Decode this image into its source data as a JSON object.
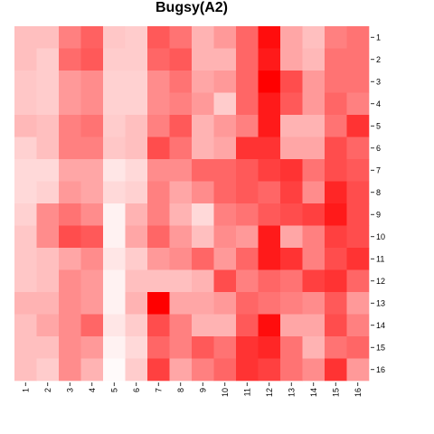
{
  "chart_data": {
    "type": "heatmap",
    "title": "Bugsy(A2)",
    "xlabel": "",
    "ylabel": "",
    "x_labels": [
      "1",
      "2",
      "3",
      "4",
      "5",
      "6",
      "7",
      "8",
      "9",
      "10",
      "11",
      "12",
      "13",
      "14",
      "15",
      "16"
    ],
    "y_labels": [
      "1",
      "2",
      "3",
      "4",
      "5",
      "6",
      "7",
      "8",
      "9",
      "10",
      "11",
      "12",
      "13",
      "14",
      "15",
      "16"
    ],
    "color_low": "#ffffff",
    "color_high": "#ff0000",
    "value_range": [
      0,
      1
    ],
    "legend": "none",
    "grid": false,
    "values": [
      [
        0.25,
        0.25,
        0.5,
        0.62,
        0.22,
        0.2,
        0.65,
        0.55,
        0.3,
        0.4,
        0.6,
        0.95,
        0.35,
        0.25,
        0.5,
        0.55
      ],
      [
        0.25,
        0.2,
        0.58,
        0.65,
        0.2,
        0.2,
        0.6,
        0.65,
        0.3,
        0.3,
        0.6,
        0.9,
        0.35,
        0.28,
        0.55,
        0.55
      ],
      [
        0.22,
        0.2,
        0.4,
        0.45,
        0.18,
        0.18,
        0.45,
        0.55,
        0.35,
        0.4,
        0.6,
        1.0,
        0.7,
        0.4,
        0.55,
        0.55
      ],
      [
        0.22,
        0.2,
        0.4,
        0.45,
        0.18,
        0.18,
        0.45,
        0.5,
        0.4,
        0.2,
        0.6,
        0.9,
        0.65,
        0.4,
        0.6,
        0.5
      ],
      [
        0.28,
        0.25,
        0.5,
        0.55,
        0.2,
        0.25,
        0.5,
        0.65,
        0.3,
        0.4,
        0.5,
        0.9,
        0.3,
        0.3,
        0.55,
        0.8
      ],
      [
        0.18,
        0.25,
        0.5,
        0.5,
        0.22,
        0.25,
        0.7,
        0.55,
        0.3,
        0.35,
        0.8,
        0.8,
        0.35,
        0.35,
        0.7,
        0.6
      ],
      [
        0.15,
        0.15,
        0.35,
        0.35,
        0.1,
        0.15,
        0.45,
        0.45,
        0.6,
        0.6,
        0.65,
        0.75,
        0.8,
        0.55,
        0.7,
        0.65
      ],
      [
        0.15,
        0.18,
        0.4,
        0.35,
        0.15,
        0.18,
        0.5,
        0.35,
        0.45,
        0.6,
        0.65,
        0.6,
        0.75,
        0.45,
        0.85,
        0.7
      ],
      [
        0.18,
        0.45,
        0.55,
        0.45,
        0.05,
        0.3,
        0.5,
        0.3,
        0.15,
        0.5,
        0.55,
        0.65,
        0.7,
        0.75,
        0.9,
        0.7
      ],
      [
        0.22,
        0.45,
        0.7,
        0.65,
        0.05,
        0.35,
        0.6,
        0.4,
        0.25,
        0.45,
        0.4,
        0.9,
        0.35,
        0.5,
        0.75,
        0.7
      ],
      [
        0.22,
        0.25,
        0.35,
        0.45,
        0.1,
        0.2,
        0.4,
        0.45,
        0.6,
        0.4,
        0.6,
        0.9,
        0.8,
        0.5,
        0.7,
        0.8
      ],
      [
        0.22,
        0.25,
        0.45,
        0.4,
        0.05,
        0.25,
        0.25,
        0.25,
        0.3,
        0.7,
        0.5,
        0.6,
        0.55,
        0.75,
        0.8,
        0.6
      ],
      [
        0.3,
        0.3,
        0.45,
        0.4,
        0.05,
        0.3,
        1.0,
        0.35,
        0.35,
        0.4,
        0.6,
        0.55,
        0.5,
        0.45,
        0.65,
        0.4
      ],
      [
        0.25,
        0.35,
        0.45,
        0.6,
        0.1,
        0.2,
        0.7,
        0.5,
        0.3,
        0.3,
        0.65,
        0.95,
        0.35,
        0.35,
        0.7,
        0.5
      ],
      [
        0.25,
        0.25,
        0.45,
        0.4,
        0.05,
        0.15,
        0.6,
        0.5,
        0.65,
        0.55,
        0.8,
        0.85,
        0.55,
        0.3,
        0.55,
        0.6
      ],
      [
        0.25,
        0.2,
        0.45,
        0.3,
        0.02,
        0.2,
        0.75,
        0.35,
        0.5,
        0.6,
        0.8,
        0.75,
        0.55,
        0.45,
        0.8,
        0.4
      ]
    ]
  }
}
